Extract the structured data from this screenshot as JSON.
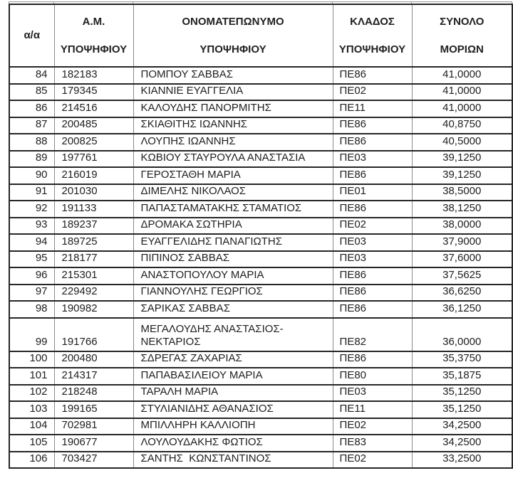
{
  "table": {
    "headers": {
      "index": "α/α",
      "am": [
        "Α.Μ.",
        "ΥΠΟΨΗΦΙΟΥ"
      ],
      "name": [
        "ΟΝΟΜΑΤΕΠΩΝΥΜΟ",
        "ΥΠΟΨΗΦΙΟΥ"
      ],
      "branch": [
        "ΚΛΑΔΟΣ",
        "ΥΠΟΨΗΦΙΟΥ"
      ],
      "total": [
        "ΣΥΝΟΛΟ",
        "ΜΟΡΙΩΝ"
      ]
    },
    "rows": [
      [
        "84",
        "182183",
        "ΠΟΜΠΟΥ ΣΑΒΒΑΣ",
        "ΠΕ86",
        "41,0000"
      ],
      [
        "85",
        "179345",
        "ΚΙΑΝΝΙΕ ΕΥΑΓΓΕΛΙΑ",
        "ΠΕ02",
        "41,0000"
      ],
      [
        "86",
        "214516",
        "ΚΑΛΟΥΔΗΣ ΠΑΝΟΡΜΙΤΗΣ",
        "ΠΕ11",
        "41,0000"
      ],
      [
        "87",
        "200485",
        "ΣΚΙΑΘΙΤΗΣ ΙΩΑΝΝΗΣ",
        "ΠΕ86",
        "40,8750"
      ],
      [
        "88",
        "200825",
        "ΛΟΥΠΗΣ ΙΩΑΝΝΗΣ",
        "ΠΕ86",
        "40,5000"
      ],
      [
        "89",
        "197761",
        "ΚΩΒΙΟΥ ΣΤΑΥΡΟΥΛΑ ΑΝΑΣΤΑΣΙΑ",
        "ΠΕ03",
        "39,1250"
      ],
      [
        "90",
        "216019",
        "ΓΕΡΟΣΤΑΘΗ ΜΑΡΙΑ",
        "ΠΕ86",
        "39,1250"
      ],
      [
        "91",
        "201030",
        "ΔΙΜΕΛΗΣ ΝΙΚΟΛΑΟΣ",
        "ΠΕ01",
        "38,5000"
      ],
      [
        "92",
        "191133",
        "ΠΑΠΑΣΤΑΜΑΤΑΚΗΣ ΣΤΑΜΑΤΙΟΣ",
        "ΠΕ86",
        "38,1250"
      ],
      [
        "93",
        "189237",
        "ΔΡΟΜΑΚΑ ΣΩΤΗΡΙΑ",
        "ΠΕ02",
        "38,0000"
      ],
      [
        "94",
        "189725",
        "ΕΥΑΓΓΕΛΙΔΗΣ ΠΑΝΑΓΙΩΤΗΣ",
        "ΠΕ03",
        "37,9000"
      ],
      [
        "95",
        "218177",
        "ΠΙΠΙΝΟΣ ΣΑΒΒΑΣ",
        "ΠΕ03",
        "37,6000"
      ],
      [
        "96",
        "215301",
        "ΑΝΑΣΤΟΠΟΥΛΟΥ ΜΑΡΙΑ",
        "ΠΕ86",
        "37,5625"
      ],
      [
        "97",
        "229492",
        "ΓΙΑΝΝΟΥΛΗΣ ΓΕΩΡΓΙΟΣ",
        "ΠΕ86",
        "36,6250"
      ],
      [
        "98",
        "190982",
        "ΣΑΡΙΚΑΣ ΣΑΒΒΑΣ",
        "ΠΕ86",
        "36,1250"
      ],
      [
        "99",
        "191766",
        "ΜΕΓΑΛΟΥΔΗΣ ΑΝΑΣΤΑΣΙΟΣ-ΝΕΚΤΑΡΙΟΣ",
        "ΠΕ82",
        "36,0000"
      ],
      [
        "100",
        "200480",
        "ΣΔΡΕΓΑΣ ΖΑΧΑΡΙΑΣ",
        "ΠΕ86",
        "35,3750"
      ],
      [
        "101",
        "214317",
        "ΠΑΠΑΒΑΣΙΛΕΙΟΥ ΜΑΡΙΑ",
        "ΠΕ80",
        "35,1875"
      ],
      [
        "102",
        "218248",
        "ΤΑΡΑΛΗ ΜΑΡΙΑ",
        "ΠΕ03",
        "35,1250"
      ],
      [
        "103",
        "199165",
        "ΣΤΥΛΙΑΝΙΔΗΣ ΑΘΑΝΑΣΙΟΣ",
        "ΠΕ11",
        "35,1250"
      ],
      [
        "104",
        "702981",
        "ΜΠΙΛΛΗΡΗ ΚΑΛΛΙΟΠΗ",
        "ΠΕ02",
        "34,2500"
      ],
      [
        "105",
        "190677",
        "ΛΟΥΛΟΥΔΑΚΗΣ ΦΩΤΙΟΣ",
        "ΠΕ83",
        "34,2500"
      ],
      [
        "106",
        "703427",
        "ΣΑΝΤΗΣ  ΚΩΝΣΤΑΝΤΙΝΟΣ",
        "ΠΕ02",
        "33,2500"
      ]
    ]
  },
  "colors": {
    "border_dark": "#262626",
    "border_light": "#8a8a8a",
    "text": "#212121",
    "background": "#ffffff"
  }
}
